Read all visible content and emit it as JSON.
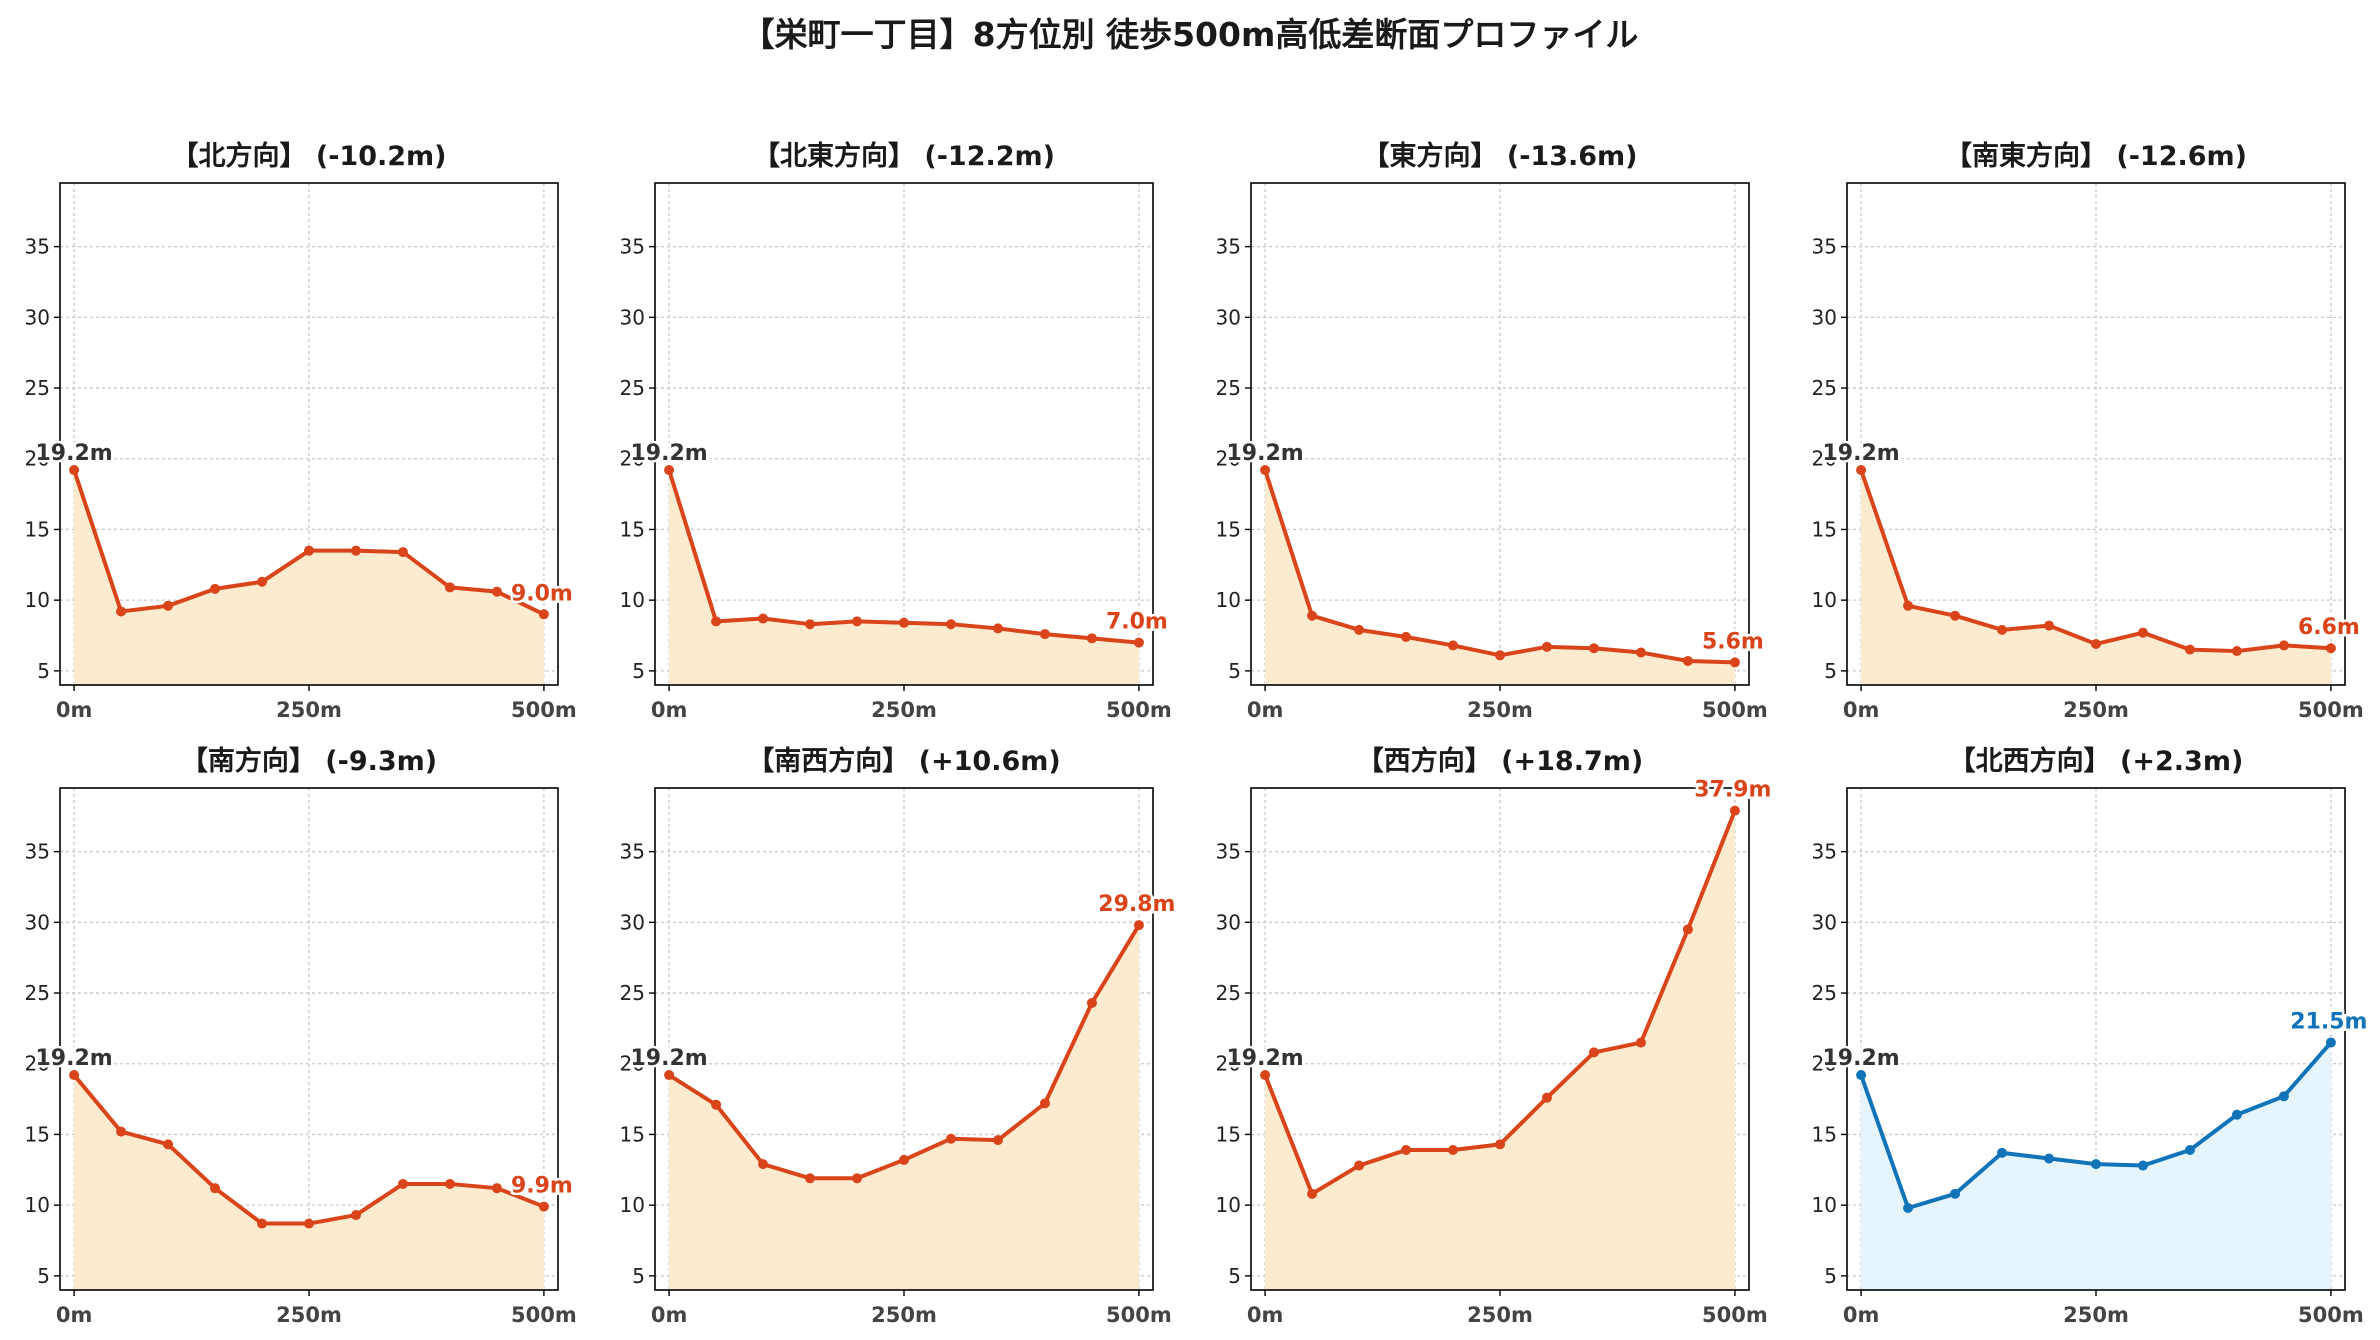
{
  "title": "【栄町一丁目】8方位別 徒歩500m高低差断面プロファイル",
  "colors": {
    "down_line": "#d9441a",
    "down_fill": "#fdebd0",
    "up_line": "#1173b8",
    "up_fill": "#e6f4fb",
    "start_label": "#333333",
    "grid": "#c8c8c8"
  },
  "chart_data": [
    {
      "type": "area",
      "title": "【北方向】 (-10.2m)",
      "trend": "down",
      "x": [
        0,
        50,
        100,
        150,
        200,
        250,
        300,
        350,
        400,
        450,
        500
      ],
      "values": [
        19.2,
        9.2,
        9.6,
        10.8,
        11.3,
        13.5,
        13.5,
        13.4,
        10.9,
        10.6,
        9.0
      ],
      "start_label": "19.2m",
      "end_label": "9.0m",
      "xticks": [
        "0m",
        "250m",
        "500m"
      ],
      "yticks": [
        5,
        10,
        15,
        20,
        25,
        30,
        35
      ],
      "ylim": [
        4,
        39.5
      ],
      "xlim": [
        -15,
        515
      ],
      "grid": true
    },
    {
      "type": "area",
      "title": "【北東方向】 (-12.2m)",
      "trend": "down",
      "x": [
        0,
        50,
        100,
        150,
        200,
        250,
        300,
        350,
        400,
        450,
        500
      ],
      "values": [
        19.2,
        8.5,
        8.7,
        8.3,
        8.5,
        8.4,
        8.3,
        8.0,
        7.6,
        7.3,
        7.0
      ],
      "start_label": "19.2m",
      "end_label": "7.0m",
      "xticks": [
        "0m",
        "250m",
        "500m"
      ],
      "yticks": [
        5,
        10,
        15,
        20,
        25,
        30,
        35
      ],
      "ylim": [
        4,
        39.5
      ],
      "xlim": [
        -15,
        515
      ],
      "grid": true
    },
    {
      "type": "area",
      "title": "【東方向】 (-13.6m)",
      "trend": "down",
      "x": [
        0,
        50,
        100,
        150,
        200,
        250,
        300,
        350,
        400,
        450,
        500
      ],
      "values": [
        19.2,
        8.9,
        7.9,
        7.4,
        6.8,
        6.1,
        6.7,
        6.6,
        6.3,
        5.7,
        5.6
      ],
      "start_label": "19.2m",
      "end_label": "5.6m",
      "xticks": [
        "0m",
        "250m",
        "500m"
      ],
      "yticks": [
        5,
        10,
        15,
        20,
        25,
        30,
        35
      ],
      "ylim": [
        4,
        39.5
      ],
      "xlim": [
        -15,
        515
      ],
      "grid": true
    },
    {
      "type": "area",
      "title": "【南東方向】 (-12.6m)",
      "trend": "down",
      "x": [
        0,
        50,
        100,
        150,
        200,
        250,
        300,
        350,
        400,
        450,
        500
      ],
      "values": [
        19.2,
        9.6,
        8.9,
        7.9,
        8.2,
        6.9,
        7.7,
        6.5,
        6.4,
        6.8,
        6.6
      ],
      "start_label": "19.2m",
      "end_label": "6.6m",
      "xticks": [
        "0m",
        "250m",
        "500m"
      ],
      "yticks": [
        5,
        10,
        15,
        20,
        25,
        30,
        35
      ],
      "ylim": [
        4,
        39.5
      ],
      "xlim": [
        -15,
        515
      ],
      "grid": true
    },
    {
      "type": "area",
      "title": "【南方向】 (-9.3m)",
      "trend": "down",
      "x": [
        0,
        50,
        100,
        150,
        200,
        250,
        300,
        350,
        400,
        450,
        500
      ],
      "values": [
        19.2,
        15.2,
        14.3,
        11.2,
        8.7,
        8.7,
        9.3,
        11.5,
        11.5,
        11.2,
        9.9
      ],
      "start_label": "19.2m",
      "end_label": "9.9m",
      "xticks": [
        "0m",
        "250m",
        "500m"
      ],
      "yticks": [
        5,
        10,
        15,
        20,
        25,
        30,
        35
      ],
      "ylim": [
        4,
        39.5
      ],
      "xlim": [
        -15,
        515
      ],
      "grid": true
    },
    {
      "type": "area",
      "title": "【南西方向】 (+10.6m)",
      "trend": "up",
      "x": [
        0,
        50,
        100,
        150,
        200,
        250,
        300,
        350,
        400,
        450,
        500
      ],
      "values": [
        19.2,
        17.1,
        12.9,
        11.9,
        11.9,
        13.2,
        14.7,
        14.6,
        17.2,
        24.3,
        29.8
      ],
      "start_label": "19.2m",
      "end_label": "29.8m",
      "xticks": [
        "0m",
        "250m",
        "500m"
      ],
      "yticks": [
        5,
        10,
        15,
        20,
        25,
        30,
        35
      ],
      "ylim": [
        4,
        39.5
      ],
      "xlim": [
        -15,
        515
      ],
      "grid": true
    },
    {
      "type": "area",
      "title": "【西方向】 (+18.7m)",
      "trend": "up",
      "x": [
        0,
        50,
        100,
        150,
        200,
        250,
        300,
        350,
        400,
        450,
        500
      ],
      "values": [
        19.2,
        10.8,
        12.8,
        13.9,
        13.9,
        14.3,
        17.6,
        20.8,
        21.5,
        29.5,
        37.9
      ],
      "start_label": "19.2m",
      "end_label": "37.9m",
      "xticks": [
        "0m",
        "250m",
        "500m"
      ],
      "yticks": [
        5,
        10,
        15,
        20,
        25,
        30,
        35
      ],
      "ylim": [
        4,
        39.5
      ],
      "xlim": [
        -15,
        515
      ],
      "grid": true
    },
    {
      "type": "area",
      "title": "【北西方向】 (+2.3m)",
      "trend": "flat",
      "x": [
        0,
        50,
        100,
        150,
        200,
        250,
        300,
        350,
        400,
        450,
        500
      ],
      "values": [
        19.2,
        9.8,
        10.8,
        13.7,
        13.3,
        12.9,
        12.8,
        13.9,
        16.4,
        17.7,
        21.5
      ],
      "start_label": "19.2m",
      "end_label": "21.5m",
      "xticks": [
        "0m",
        "250m",
        "500m"
      ],
      "yticks": [
        5,
        10,
        15,
        20,
        25,
        30,
        35
      ],
      "ylim": [
        4,
        39.5
      ],
      "xlim": [
        -15,
        515
      ],
      "grid": true
    }
  ]
}
